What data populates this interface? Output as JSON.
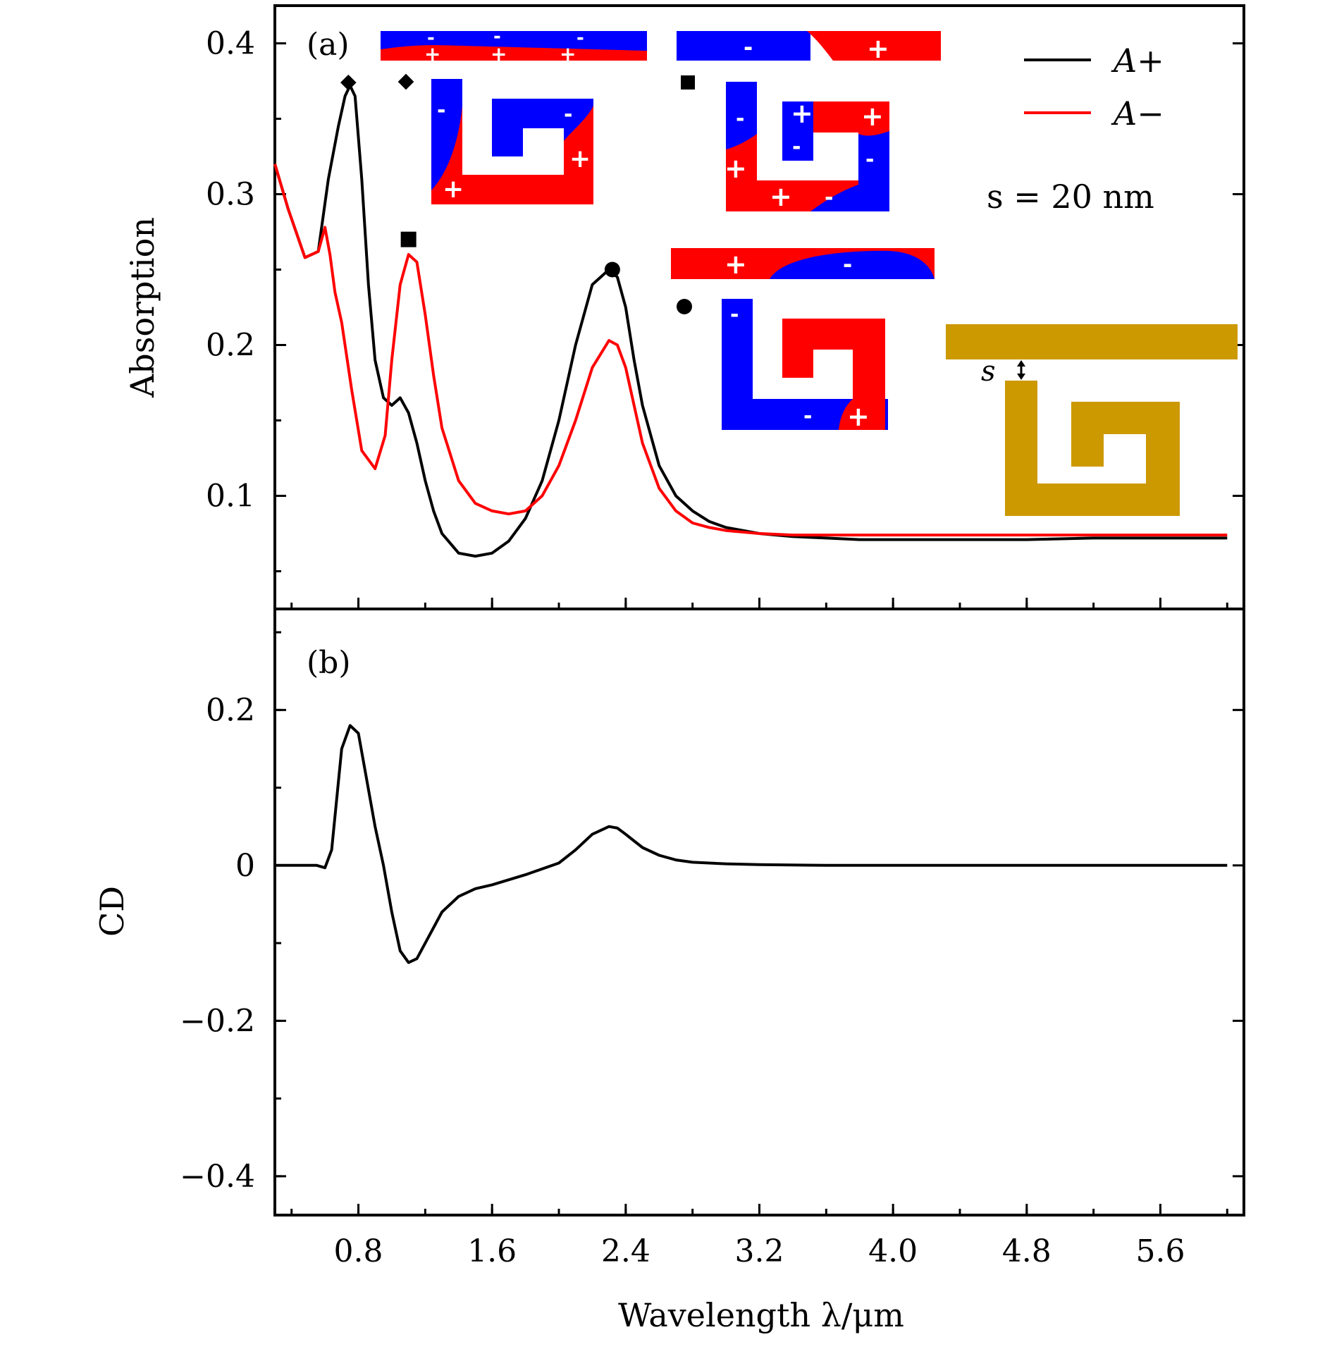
{
  "chart_data": [
    {
      "panel": "(a)",
      "type": "line",
      "xlabel": "Wavelength λ/μm",
      "ylabel": "Absorption",
      "xlim": [
        0.3,
        6.1
      ],
      "ylim": [
        0.025,
        0.425
      ],
      "yticks": [
        0.1,
        0.2,
        0.3,
        0.4
      ],
      "ytick_labels": [
        "0.1",
        "0.2",
        "0.3",
        "0.4"
      ],
      "annotation": "s = 20 nm",
      "legend": [
        "A+",
        "A−"
      ],
      "series": [
        {
          "name": "A+",
          "color": "#000000",
          "x": [
            0.3,
            0.38,
            0.48,
            0.56,
            0.62,
            0.68,
            0.72,
            0.75,
            0.78,
            0.82,
            0.86,
            0.9,
            0.95,
            1.0,
            1.05,
            1.1,
            1.15,
            1.2,
            1.25,
            1.3,
            1.4,
            1.5,
            1.6,
            1.7,
            1.8,
            1.9,
            2.0,
            2.1,
            2.2,
            2.3,
            2.35,
            2.4,
            2.45,
            2.5,
            2.6,
            2.7,
            2.8,
            2.9,
            3.0,
            3.2,
            3.4,
            3.6,
            3.8,
            4.0,
            4.4,
            4.8,
            5.2,
            5.6,
            6.0
          ],
          "y": [
            0.32,
            0.29,
            0.258,
            0.262,
            0.31,
            0.345,
            0.365,
            0.372,
            0.365,
            0.31,
            0.24,
            0.19,
            0.165,
            0.16,
            0.165,
            0.155,
            0.135,
            0.11,
            0.09,
            0.075,
            0.062,
            0.06,
            0.062,
            0.07,
            0.085,
            0.11,
            0.15,
            0.2,
            0.24,
            0.25,
            0.245,
            0.225,
            0.19,
            0.16,
            0.12,
            0.1,
            0.09,
            0.083,
            0.079,
            0.075,
            0.073,
            0.072,
            0.071,
            0.071,
            0.071,
            0.071,
            0.072,
            0.072,
            0.072
          ]
        },
        {
          "name": "A−",
          "color": "#ff0000",
          "x": [
            0.3,
            0.38,
            0.48,
            0.56,
            0.6,
            0.63,
            0.66,
            0.7,
            0.76,
            0.82,
            0.9,
            0.96,
            1.0,
            1.05,
            1.1,
            1.15,
            1.2,
            1.25,
            1.3,
            1.4,
            1.5,
            1.6,
            1.7,
            1.8,
            1.9,
            2.0,
            2.1,
            2.2,
            2.3,
            2.35,
            2.4,
            2.45,
            2.5,
            2.6,
            2.7,
            2.8,
            2.9,
            3.0,
            3.2,
            3.4,
            3.6,
            3.8,
            4.0,
            4.4,
            4.8,
            5.2,
            5.6,
            6.0
          ],
          "y": [
            0.32,
            0.29,
            0.258,
            0.262,
            0.278,
            0.26,
            0.235,
            0.215,
            0.17,
            0.13,
            0.118,
            0.14,
            0.19,
            0.24,
            0.26,
            0.255,
            0.22,
            0.18,
            0.145,
            0.11,
            0.095,
            0.09,
            0.088,
            0.09,
            0.1,
            0.12,
            0.15,
            0.185,
            0.203,
            0.2,
            0.185,
            0.16,
            0.135,
            0.105,
            0.09,
            0.082,
            0.079,
            0.077,
            0.075,
            0.074,
            0.074,
            0.074,
            0.074,
            0.074,
            0.074,
            0.074,
            0.074,
            0.074
          ]
        }
      ],
      "markers": [
        {
          "shape": "diamond",
          "x": 0.74,
          "y": 0.374
        },
        {
          "shape": "square",
          "x": 1.1,
          "y": 0.27
        },
        {
          "shape": "circle",
          "x": 2.32,
          "y": 0.25
        }
      ]
    },
    {
      "panel": "(b)",
      "type": "line",
      "xlabel": "Wavelength λ/μm",
      "ylabel": "CD",
      "xlim": [
        0.3,
        6.1
      ],
      "ylim": [
        -0.45,
        0.33
      ],
      "yticks": [
        -0.4,
        -0.2,
        0,
        0.2
      ],
      "ytick_labels": [
        "−0.4",
        "−0.2",
        "0",
        "0.2"
      ],
      "xticks": [
        0.8,
        1.6,
        2.4,
        3.2,
        4.0,
        4.8,
        5.6
      ],
      "xtick_labels": [
        "0.8",
        "1.6",
        "2.4",
        "3.2",
        "4.0",
        "4.8",
        "5.6"
      ],
      "series": [
        {
          "name": "CD",
          "color": "#000000",
          "x": [
            0.3,
            0.45,
            0.55,
            0.6,
            0.64,
            0.7,
            0.75,
            0.8,
            0.85,
            0.9,
            0.95,
            1.0,
            1.05,
            1.1,
            1.15,
            1.2,
            1.3,
            1.4,
            1.5,
            1.6,
            1.8,
            2.0,
            2.1,
            2.2,
            2.3,
            2.35,
            2.4,
            2.5,
            2.6,
            2.7,
            2.8,
            3.0,
            3.2,
            3.6,
            4.0,
            4.8,
            5.6,
            6.0
          ],
          "y": [
            0.0,
            0.0,
            0.0,
            -0.003,
            0.02,
            0.15,
            0.18,
            0.17,
            0.11,
            0.05,
            0.0,
            -0.06,
            -0.11,
            -0.125,
            -0.12,
            -0.1,
            -0.06,
            -0.04,
            -0.03,
            -0.025,
            -0.012,
            0.003,
            0.02,
            0.04,
            0.05,
            0.048,
            0.04,
            0.023,
            0.013,
            0.007,
            0.004,
            0.002,
            0.001,
            0.0,
            0.0,
            0.0,
            0.0,
            0.0
          ]
        }
      ]
    }
  ],
  "insets": {
    "minus": "-",
    "plus": "+",
    "s_label": "s"
  }
}
